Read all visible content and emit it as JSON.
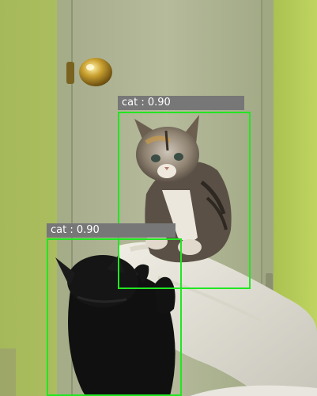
{
  "detections": [
    {
      "label": "cat : 0.90",
      "color": "#22e622"
    },
    {
      "label": "cat : 0.90",
      "color": "#22e622"
    }
  ]
}
